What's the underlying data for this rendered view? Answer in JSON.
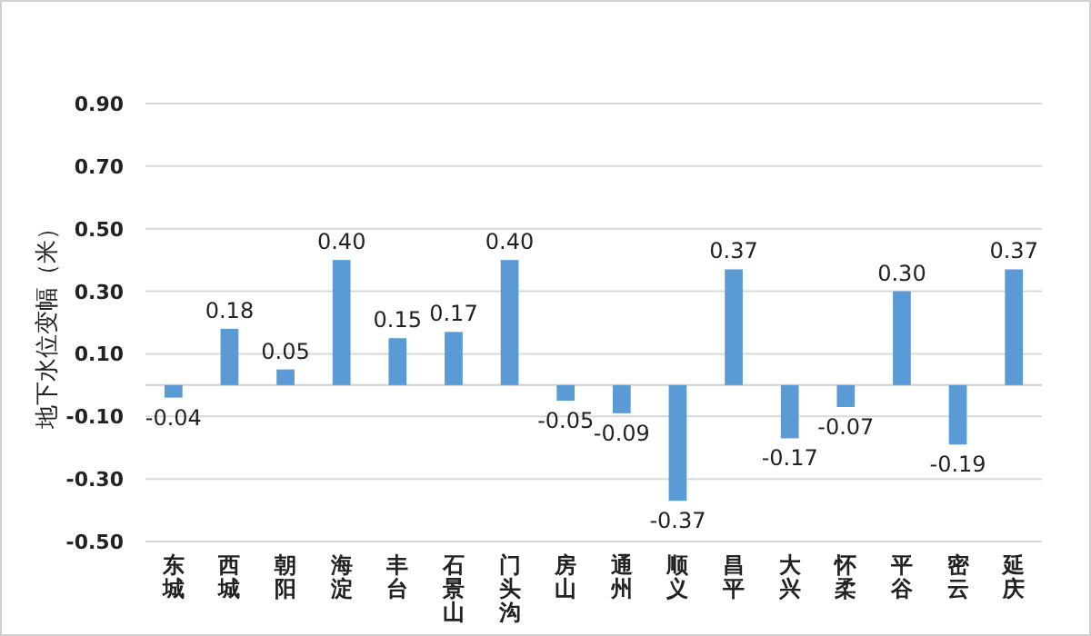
{
  "chart_data": {
    "type": "bar",
    "ylabel": "地下水位变幅（米）",
    "categories": [
      "东城",
      "西城",
      "朝阳",
      "海淀",
      "丰台",
      "石景山",
      "门头沟",
      "房山",
      "通州",
      "顺义",
      "昌平",
      "大兴",
      "怀柔",
      "平谷",
      "密云",
      "延庆"
    ],
    "values": [
      -0.04,
      0.18,
      0.05,
      0.4,
      0.15,
      0.17,
      0.4,
      -0.05,
      -0.09,
      -0.37,
      0.37,
      -0.17,
      -0.07,
      0.3,
      -0.19,
      0.37
    ],
    "value_labels": [
      "-0.04",
      "0.18",
      "0.05",
      "0.40",
      "0.15",
      "0.17",
      "0.40",
      "-0.05",
      "-0.09",
      "-0.37",
      "0.37",
      "-0.17",
      "-0.07",
      "0.30",
      "-0.19",
      "0.37"
    ],
    "color": "#5b9bd5",
    "ylim": [
      -0.5,
      0.9
    ],
    "yticks": [
      {
        "value": -0.5,
        "label": "-0.50"
      },
      {
        "value": -0.3,
        "label": "-0.30"
      },
      {
        "value": -0.1,
        "label": "-0.10"
      },
      {
        "value": 0.1,
        "label": "0.10"
      },
      {
        "value": 0.3,
        "label": "0.30"
      },
      {
        "value": 0.5,
        "label": "0.50"
      },
      {
        "value": 0.7,
        "label": "0.70"
      },
      {
        "value": 0.9,
        "label": "0.90"
      }
    ],
    "grid": "y"
  }
}
